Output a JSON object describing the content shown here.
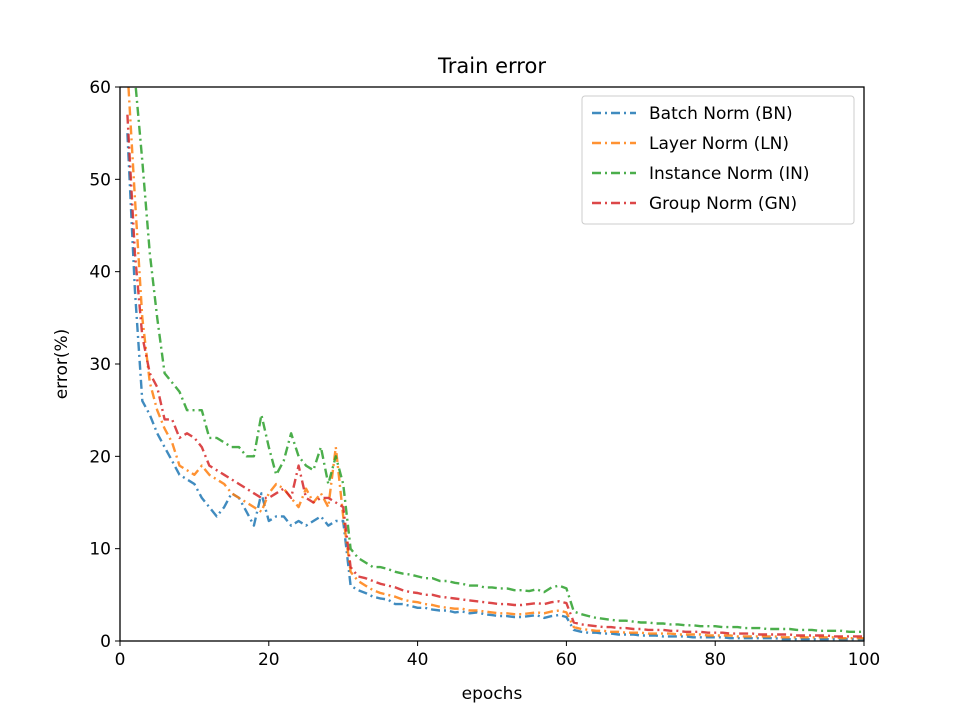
{
  "chart_data": {
    "type": "line",
    "title": "Train error",
    "xlabel": "epochs",
    "ylabel": "error(%)",
    "xlim": [
      0,
      100
    ],
    "ylim": [
      0,
      60
    ],
    "xticks": [
      0,
      20,
      40,
      60,
      80,
      100
    ],
    "yticks": [
      0,
      10,
      20,
      30,
      40,
      50,
      60
    ],
    "grid": false,
    "legend_position": "top-right",
    "line_style": "dash-dot",
    "x": [
      1,
      2,
      3,
      4,
      5,
      6,
      7,
      8,
      9,
      10,
      11,
      12,
      13,
      14,
      15,
      16,
      17,
      18,
      19,
      20,
      21,
      22,
      23,
      24,
      25,
      26,
      27,
      28,
      29,
      30,
      31,
      32,
      33,
      34,
      35,
      36,
      37,
      38,
      39,
      40,
      41,
      42,
      43,
      44,
      45,
      46,
      47,
      48,
      49,
      50,
      51,
      52,
      53,
      54,
      55,
      56,
      57,
      58,
      59,
      60,
      61,
      62,
      63,
      64,
      65,
      66,
      67,
      68,
      69,
      70,
      71,
      72,
      73,
      74,
      75,
      76,
      77,
      78,
      79,
      80,
      81,
      82,
      83,
      84,
      85,
      86,
      87,
      88,
      89,
      90,
      91,
      92,
      93,
      94,
      95,
      96,
      97,
      98,
      99,
      100
    ],
    "series": [
      {
        "name": "Batch Norm (BN)",
        "color": "#1f77b4",
        "values": [
          55,
          38,
          26,
          24.5,
          22.5,
          21,
          19.5,
          18,
          17.5,
          17,
          15.5,
          14.5,
          13.5,
          14.5,
          16,
          15.5,
          14,
          12.5,
          16,
          13,
          13.5,
          13.5,
          12.5,
          13,
          12.5,
          13,
          13.5,
          12.5,
          13,
          13,
          6,
          5.5,
          5.2,
          4.8,
          4.6,
          4.5,
          4.0,
          4.0,
          3.8,
          3.6,
          3.6,
          3.4,
          3.3,
          3.3,
          3.1,
          3.2,
          3.0,
          3.1,
          2.9,
          2.8,
          2.7,
          2.7,
          2.6,
          2.6,
          2.7,
          2.8,
          2.5,
          2.7,
          2.8,
          2.6,
          1.2,
          1.0,
          0.9,
          0.9,
          0.8,
          0.8,
          0.7,
          0.7,
          0.7,
          0.6,
          0.6,
          0.6,
          0.5,
          0.5,
          0.5,
          0.5,
          0.4,
          0.4,
          0.4,
          0.4,
          0.4,
          0.3,
          0.3,
          0.3,
          0.3,
          0.3,
          0.3,
          0.3,
          0.2,
          0.2,
          0.2,
          0.2,
          0.2,
          0.2,
          0.2,
          0.2,
          0.2,
          0.2,
          0.2,
          0.2
        ]
      },
      {
        "name": "Layer Norm (LN)",
        "color": "#ff7f0e",
        "values": [
          62,
          48,
          35,
          28,
          25,
          23,
          21.5,
          19,
          18.5,
          18,
          19,
          18,
          17.5,
          17,
          16,
          15.5,
          15,
          14.5,
          14,
          16,
          17,
          16.5,
          15.5,
          14.5,
          16.5,
          15,
          16,
          14.5,
          21,
          13.5,
          7.5,
          6.5,
          6,
          5.5,
          5.2,
          5,
          4.8,
          4.5,
          4.3,
          4.2,
          4.0,
          3.9,
          3.7,
          3.6,
          3.5,
          3.5,
          3.3,
          3.3,
          3.2,
          3.1,
          3.0,
          3.0,
          2.9,
          2.9,
          3.0,
          3.1,
          3.0,
          3.2,
          3.3,
          3.1,
          1.5,
          1.3,
          1.2,
          1.1,
          1.1,
          1.0,
          1.0,
          0.9,
          0.9,
          0.9,
          0.8,
          0.8,
          0.8,
          0.8,
          0.7,
          0.7,
          0.7,
          0.7,
          0.6,
          0.6,
          0.6,
          0.6,
          0.5,
          0.5,
          0.5,
          0.5,
          0.5,
          0.5,
          0.4,
          0.4,
          0.4,
          0.4,
          0.4,
          0.4,
          0.4,
          0.4,
          0.3,
          0.3,
          0.3,
          0.3
        ]
      },
      {
        "name": "Instance Norm (IN)",
        "color": "#2ca02c",
        "values": [
          66,
          61,
          52,
          42,
          35,
          29,
          28,
          27,
          25,
          25,
          25,
          22,
          22,
          21.5,
          21,
          21,
          20,
          20,
          24.5,
          21,
          18,
          19.5,
          22.5,
          20,
          19,
          18.5,
          21,
          17,
          20,
          17,
          10,
          9,
          8.5,
          8,
          8,
          7.8,
          7.5,
          7.3,
          7.2,
          7.0,
          6.8,
          6.8,
          6.5,
          6.5,
          6.3,
          6.2,
          6.0,
          6.0,
          5.8,
          5.8,
          5.7,
          5.7,
          5.5,
          5.5,
          5.4,
          5.6,
          5.3,
          5.8,
          6.0,
          5.7,
          3.2,
          2.9,
          2.7,
          2.5,
          2.4,
          2.3,
          2.2,
          2.2,
          2.1,
          2.0,
          2.0,
          1.9,
          1.9,
          1.8,
          1.8,
          1.7,
          1.7,
          1.6,
          1.6,
          1.6,
          1.5,
          1.5,
          1.5,
          1.4,
          1.4,
          1.4,
          1.3,
          1.3,
          1.3,
          1.3,
          1.2,
          1.2,
          1.2,
          1.1,
          1.1,
          1.1,
          1.1,
          1.0,
          1.0,
          1.0
        ]
      },
      {
        "name": "Group Norm (GN)",
        "color": "#d62728",
        "values": [
          57,
          42,
          33,
          29,
          27.5,
          24,
          24,
          22,
          22.5,
          22,
          21,
          19,
          18.5,
          18,
          17.5,
          17,
          16.5,
          16,
          15.5,
          15.5,
          16,
          16.5,
          15.5,
          19,
          15.5,
          15,
          15.5,
          15.5,
          15,
          14.5,
          8,
          7,
          6.8,
          6.5,
          6.2,
          6,
          5.8,
          5.5,
          5.3,
          5.2,
          5.0,
          5.0,
          4.8,
          4.7,
          4.6,
          4.5,
          4.4,
          4.3,
          4.2,
          4.1,
          4.0,
          4.0,
          3.9,
          3.9,
          4.0,
          4.1,
          4.0,
          4.2,
          4.3,
          4.1,
          2.0,
          1.8,
          1.7,
          1.6,
          1.5,
          1.5,
          1.4,
          1.4,
          1.3,
          1.3,
          1.2,
          1.2,
          1.2,
          1.1,
          1.1,
          1.0,
          1.0,
          1.0,
          0.9,
          0.9,
          0.9,
          0.8,
          0.8,
          0.8,
          0.8,
          0.7,
          0.7,
          0.7,
          0.7,
          0.7,
          0.6,
          0.6,
          0.6,
          0.6,
          0.6,
          0.5,
          0.5,
          0.5,
          0.5,
          0.5
        ]
      }
    ]
  }
}
